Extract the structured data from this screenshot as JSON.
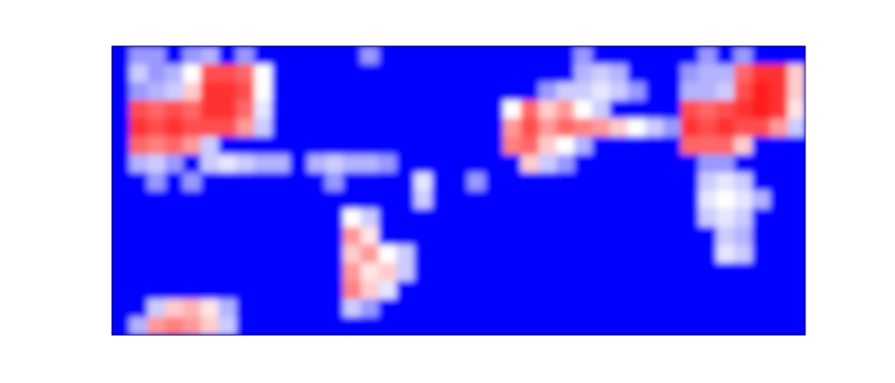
{
  "chart_data": {
    "type": "heatmap",
    "tick_labels": false,
    "zlim": [
      0,
      1
    ],
    "cells": [
      [
        0,
        0.3,
        0.3,
        0,
        0.3,
        0.35,
        0,
        0.3,
        0,
        0,
        0,
        0,
        0,
        0,
        0.3,
        0,
        0,
        0,
        0,
        0,
        0,
        0,
        0,
        0,
        0,
        0,
        0.3,
        0,
        0,
        0,
        0,
        0,
        0,
        0.3,
        0,
        0.3,
        0,
        0,
        0
      ],
      [
        0,
        0.4,
        0.3,
        0.35,
        0.5,
        0.85,
        0.85,
        0.8,
        0.5,
        0,
        0,
        0,
        0,
        0,
        0,
        0,
        0,
        0,
        0,
        0,
        0,
        0,
        0,
        0,
        0,
        0,
        0.35,
        0.4,
        0.35,
        0,
        0,
        0,
        0.3,
        0.35,
        0.35,
        0.8,
        0.9,
        0.9,
        0.6
      ],
      [
        0,
        0.3,
        0.35,
        0.4,
        0.6,
        0.9,
        0.9,
        0.85,
        0.5,
        0,
        0,
        0,
        0,
        0,
        0,
        0,
        0,
        0,
        0,
        0,
        0,
        0,
        0,
        0,
        0.3,
        0.4,
        0.4,
        0.45,
        0.4,
        0.3,
        0,
        0,
        0.35,
        0.35,
        0.4,
        0.85,
        0.95,
        0.9,
        0.6
      ],
      [
        0,
        0.85,
        0.8,
        0.85,
        0.8,
        0.9,
        0.9,
        0.8,
        0.45,
        0,
        0,
        0,
        0,
        0,
        0,
        0,
        0,
        0,
        0,
        0,
        0,
        0,
        0.5,
        0.8,
        0.6,
        0.7,
        0.5,
        0.4,
        0,
        0,
        0,
        0,
        0.85,
        0.8,
        0.85,
        0.9,
        0.95,
        0.9,
        0.55
      ],
      [
        0,
        0.9,
        0.85,
        0.9,
        0.85,
        0.85,
        0.85,
        0.7,
        0.4,
        0,
        0,
        0,
        0,
        0,
        0,
        0,
        0,
        0,
        0,
        0,
        0,
        0,
        0.7,
        0.85,
        0.7,
        0.8,
        0.75,
        0.7,
        0.6,
        0.5,
        0.4,
        0.3,
        0.9,
        0.85,
        0.9,
        0.85,
        0.85,
        0.7,
        0.4
      ],
      [
        0,
        0.8,
        0.75,
        0.8,
        0.7,
        0.4,
        0,
        0,
        0,
        0,
        0,
        0,
        0,
        0,
        0,
        0,
        0,
        0,
        0,
        0,
        0,
        0,
        0.75,
        0.8,
        0.6,
        0.5,
        0.35,
        0,
        0,
        0,
        0,
        0,
        0.8,
        0.8,
        0.8,
        0.6,
        0,
        0,
        0
      ],
      [
        0,
        0.35,
        0.4,
        0.3,
        0,
        0.4,
        0.45,
        0.4,
        0.35,
        0.35,
        0,
        0.35,
        0.4,
        0.35,
        0.35,
        0.3,
        0,
        0,
        0,
        0,
        0,
        0,
        0,
        0.6,
        0.4,
        0.3,
        0,
        0,
        0,
        0,
        0,
        0,
        0,
        0.3,
        0.3,
        0,
        0,
        0,
        0
      ],
      [
        0,
        0,
        0.3,
        0,
        0.3,
        0,
        0,
        0,
        0,
        0,
        0,
        0,
        0.3,
        0,
        0,
        0,
        0,
        0.45,
        0,
        0,
        0.3,
        0,
        0,
        0,
        0,
        0,
        0,
        0,
        0,
        0,
        0,
        0,
        0,
        0.4,
        0.45,
        0.4,
        0,
        0,
        0
      ],
      [
        0,
        0,
        0,
        0,
        0,
        0,
        0,
        0,
        0,
        0,
        0,
        0,
        0,
        0,
        0,
        0,
        0,
        0.4,
        0,
        0,
        0,
        0,
        0,
        0,
        0,
        0,
        0,
        0,
        0,
        0,
        0,
        0,
        0,
        0.45,
        0.5,
        0.45,
        0.35,
        0,
        0
      ],
      [
        0,
        0,
        0,
        0,
        0,
        0,
        0,
        0,
        0,
        0,
        0,
        0,
        0,
        0.5,
        0.4,
        0,
        0,
        0,
        0,
        0,
        0,
        0,
        0,
        0,
        0,
        0,
        0,
        0,
        0,
        0,
        0,
        0,
        0,
        0.4,
        0.45,
        0.4,
        0,
        0,
        0
      ],
      [
        0,
        0,
        0,
        0,
        0,
        0,
        0,
        0,
        0,
        0,
        0,
        0,
        0,
        0.7,
        0.55,
        0,
        0,
        0,
        0,
        0,
        0,
        0,
        0,
        0,
        0,
        0,
        0,
        0,
        0,
        0,
        0,
        0,
        0,
        0,
        0.4,
        0.35,
        0,
        0,
        0
      ],
      [
        0,
        0,
        0,
        0,
        0,
        0,
        0,
        0,
        0,
        0,
        0,
        0,
        0,
        0.6,
        0.7,
        0.5,
        0.4,
        0,
        0,
        0,
        0,
        0,
        0,
        0,
        0,
        0,
        0,
        0,
        0,
        0,
        0,
        0,
        0,
        0,
        0.45,
        0.4,
        0,
        0,
        0
      ],
      [
        0,
        0,
        0,
        0,
        0,
        0,
        0,
        0,
        0,
        0,
        0,
        0,
        0,
        0.7,
        0.55,
        0.6,
        0.4,
        0,
        0,
        0,
        0,
        0,
        0,
        0,
        0,
        0,
        0,
        0,
        0,
        0,
        0,
        0,
        0,
        0,
        0,
        0,
        0,
        0,
        0
      ],
      [
        0,
        0,
        0,
        0,
        0,
        0,
        0,
        0,
        0,
        0,
        0,
        0,
        0,
        0.75,
        0.6,
        0.45,
        0,
        0,
        0,
        0,
        0,
        0,
        0,
        0,
        0,
        0,
        0,
        0,
        0,
        0,
        0,
        0,
        0,
        0,
        0,
        0,
        0,
        0,
        0
      ],
      [
        0,
        0,
        0.4,
        0.6,
        0.65,
        0.55,
        0.35,
        0,
        0,
        0,
        0,
        0,
        0,
        0.4,
        0.3,
        0,
        0,
        0,
        0,
        0,
        0,
        0,
        0,
        0,
        0,
        0,
        0,
        0,
        0,
        0,
        0,
        0,
        0,
        0,
        0,
        0,
        0,
        0,
        0
      ],
      [
        0,
        0.35,
        0.7,
        0.75,
        0.7,
        0.6,
        0.4,
        0,
        0,
        0,
        0,
        0,
        0,
        0,
        0,
        0,
        0,
        0,
        0,
        0,
        0,
        0,
        0,
        0,
        0,
        0,
        0,
        0,
        0,
        0,
        0,
        0,
        0,
        0,
        0,
        0,
        0,
        0,
        0
      ]
    ]
  }
}
